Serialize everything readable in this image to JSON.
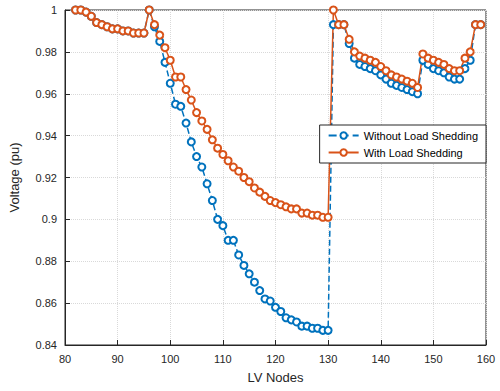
{
  "chart_data": {
    "type": "line",
    "x_label": "LV Nodes",
    "y_label": "Voltage (pu)",
    "x": [
      82,
      83,
      84,
      85,
      86,
      87,
      88,
      89,
      90,
      91,
      92,
      93,
      94,
      95,
      96,
      97,
      98,
      99,
      100,
      101,
      102,
      103,
      104,
      105,
      106,
      107,
      108,
      109,
      110,
      111,
      112,
      113,
      114,
      115,
      116,
      117,
      118,
      119,
      120,
      121,
      122,
      123,
      124,
      125,
      126,
      127,
      128,
      129,
      130,
      131,
      132,
      133,
      134,
      135,
      136,
      137,
      138,
      139,
      140,
      141,
      142,
      143,
      144,
      145,
      146,
      147,
      148,
      149,
      150,
      151,
      152,
      153,
      154,
      155,
      156,
      157,
      158,
      159
    ],
    "series": [
      {
        "name": "Without Load Shedding",
        "color": "#0072bd",
        "line_style": "dashed",
        "marker": "circle",
        "values": [
          1.0,
          1.0,
          0.999,
          0.997,
          0.994,
          0.993,
          0.992,
          0.991,
          0.991,
          0.99,
          0.99,
          0.989,
          0.989,
          0.989,
          1.0,
          0.992,
          0.985,
          0.975,
          0.965,
          0.955,
          0.954,
          0.946,
          0.937,
          0.93,
          0.925,
          0.917,
          0.909,
          0.9,
          0.897,
          0.89,
          0.89,
          0.883,
          0.878,
          0.874,
          0.87,
          0.866,
          0.862,
          0.861,
          0.858,
          0.856,
          0.853,
          0.852,
          0.851,
          0.849,
          0.849,
          0.848,
          0.848,
          0.847,
          0.847,
          0.993,
          0.993,
          0.993,
          0.984,
          0.977,
          0.974,
          0.973,
          0.972,
          0.971,
          0.969,
          0.967,
          0.965,
          0.964,
          0.963,
          0.962,
          0.961,
          0.96,
          0.976,
          0.974,
          0.972,
          0.971,
          0.97,
          0.968,
          0.967,
          0.967,
          0.972,
          0.976,
          0.993,
          0.993
        ]
      },
      {
        "name": "With Load Shedding",
        "color": "#d95319",
        "line_style": "solid",
        "marker": "circle",
        "values": [
          1.0,
          1.0,
          0.999,
          0.997,
          0.994,
          0.993,
          0.992,
          0.991,
          0.991,
          0.99,
          0.99,
          0.989,
          0.989,
          0.989,
          1.0,
          0.993,
          0.988,
          0.982,
          0.976,
          0.968,
          0.968,
          0.962,
          0.957,
          0.951,
          0.947,
          0.943,
          0.938,
          0.934,
          0.931,
          0.928,
          0.925,
          0.923,
          0.92,
          0.918,
          0.915,
          0.913,
          0.911,
          0.909,
          0.908,
          0.907,
          0.906,
          0.905,
          0.905,
          0.903,
          0.903,
          0.902,
          0.902,
          0.901,
          0.901,
          1.0,
          0.993,
          0.993,
          0.986,
          0.98,
          0.978,
          0.977,
          0.976,
          0.975,
          0.973,
          0.971,
          0.969,
          0.968,
          0.967,
          0.966,
          0.965,
          0.963,
          0.979,
          0.977,
          0.976,
          0.975,
          0.974,
          0.972,
          0.971,
          0.971,
          0.977,
          0.98,
          0.993,
          0.993
        ]
      }
    ],
    "xlim": [
      80,
      160
    ],
    "xticks": [
      80,
      90,
      100,
      110,
      120,
      130,
      140,
      150,
      160
    ],
    "ylim": [
      0.84,
      1
    ],
    "yticks": [
      0.84,
      0.86,
      0.88,
      0.9,
      0.92,
      0.94,
      0.96,
      0.98,
      1
    ],
    "grid": true,
    "legend": "right"
  }
}
